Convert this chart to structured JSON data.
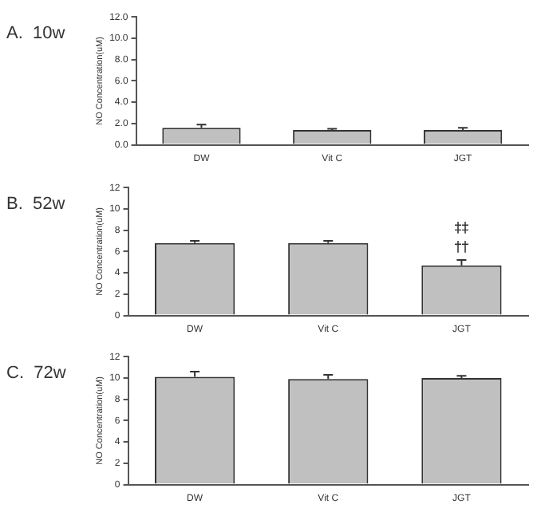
{
  "chart_data": [
    {
      "type": "bar",
      "title": "A.  10w",
      "ylabel": "NO Concentration(uM)",
      "categories": [
        "DW",
        "Vit C",
        "JGT"
      ],
      "values": [
        1.6,
        1.4,
        1.4
      ],
      "errors": [
        0.3,
        0.1,
        0.2
      ],
      "color": "#c0c0c0",
      "ylim": [
        0,
        12
      ],
      "yticks": [
        {
          "value": 0,
          "label": "0.0"
        },
        {
          "value": 2,
          "label": "2.0"
        },
        {
          "value": 4,
          "label": "4.0"
        },
        {
          "value": 6,
          "label": "6.0"
        },
        {
          "value": 8,
          "label": "8.0"
        },
        {
          "value": 10,
          "label": "10.0"
        },
        {
          "value": 12,
          "label": "12.0"
        }
      ],
      "grid": false,
      "legend": false
    },
    {
      "type": "bar",
      "title": "B.  52w",
      "ylabel": "NO Concentration(uM)",
      "categories": [
        "DW",
        "Vit C",
        "JGT"
      ],
      "values": [
        6.8,
        6.8,
        4.7
      ],
      "errors": [
        0.2,
        0.2,
        0.5
      ],
      "color": "#c0c0c0",
      "ylim": [
        0,
        12
      ],
      "yticks": [
        0,
        2,
        4,
        6,
        8,
        10,
        12
      ],
      "grid": false,
      "legend": false,
      "annotations": [
        "‡‡",
        "††"
      ]
    },
    {
      "type": "bar",
      "title": "C.  72w",
      "ylabel": "NO Concentration(uM)",
      "categories": [
        "DW",
        "Vit C",
        "JGT"
      ],
      "values": [
        10.1,
        9.9,
        10.0
      ],
      "errors": [
        0.5,
        0.4,
        0.2
      ],
      "color": "#c0c0c0",
      "ylim": [
        0,
        12
      ],
      "yticks": [
        0,
        2,
        4,
        6,
        8,
        10,
        12
      ],
      "grid": false,
      "legend": false
    }
  ]
}
